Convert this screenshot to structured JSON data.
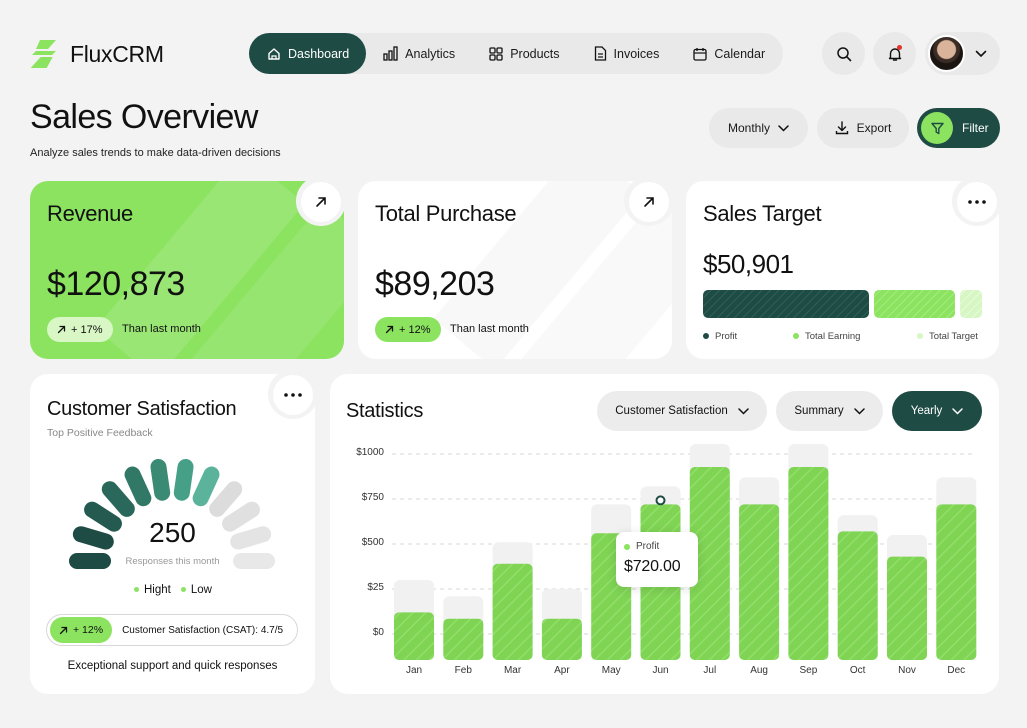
{
  "app": {
    "name": "FluxCRM"
  },
  "nav": {
    "items": [
      {
        "label": "Dashboard",
        "icon": "home-icon",
        "active": true
      },
      {
        "label": "Analytics",
        "icon": "bar-chart-icon"
      },
      {
        "label": "Products",
        "icon": "grid-icon"
      },
      {
        "label": "Invoices",
        "icon": "document-icon"
      },
      {
        "label": "Calendar",
        "icon": "calendar-icon"
      }
    ]
  },
  "header": {
    "title": "Sales Overview",
    "subtitle": "Analyze sales trends to make data-driven decisions",
    "period_label": "Monthly",
    "export_label": "Export",
    "filter_label": "Filter"
  },
  "revenue": {
    "title": "Revenue",
    "value": "$120,873",
    "change": "+ 17%",
    "note": "Than last month"
  },
  "purchase": {
    "title": "Total Purchase",
    "value": "$89,203",
    "change": "+ 12%",
    "note": "Than last month"
  },
  "target": {
    "title": "Sales Target",
    "value": "$50,901",
    "legend": [
      "Profit",
      "Total Earning",
      "Total Target"
    ]
  },
  "satisfaction": {
    "title": "Customer Satisfaction",
    "subtitle": "Top Positive Feedback",
    "value": "250",
    "value_caption": "Responses this month",
    "legend_high": "Hight",
    "legend_low": "Low",
    "csat_change": "+ 12%",
    "csat_text": "Customer Satisfaction (CSAT): 4.7/5",
    "footer": "Exceptional support and quick responses"
  },
  "statistics": {
    "title": "Statistics",
    "filter_metric": "Customer Satisfaction",
    "filter_view": "Summary",
    "filter_period": "Yearly",
    "tooltip_label": "Profit",
    "tooltip_value": "$720.00"
  },
  "colors": {
    "brand_dark": "#1f4b45",
    "brand_green": "#8be360",
    "bar_green": "#7fd454",
    "page_bg": "#f3f3f3"
  },
  "chart_data": {
    "type": "bar",
    "categories": [
      "Jan",
      "Feb",
      "Mar",
      "Apr",
      "May",
      "Jun",
      "Jul",
      "Aug",
      "Sep",
      "Oct",
      "Nov",
      "Dec"
    ],
    "y_tick_labels": [
      "$1000",
      "$750",
      "$500",
      "$25",
      "$0"
    ],
    "values": [
      120,
      85,
      390,
      85,
      560,
      720,
      1000,
      720,
      1000,
      570,
      430,
      720
    ],
    "background_values": [
      300,
      210,
      510,
      250,
      720,
      820,
      1150,
      870,
      1150,
      660,
      550,
      870
    ],
    "highlight": {
      "category": "Jun",
      "series": "Profit",
      "value": 720
    },
    "ylim": [
      0,
      1000
    ]
  }
}
